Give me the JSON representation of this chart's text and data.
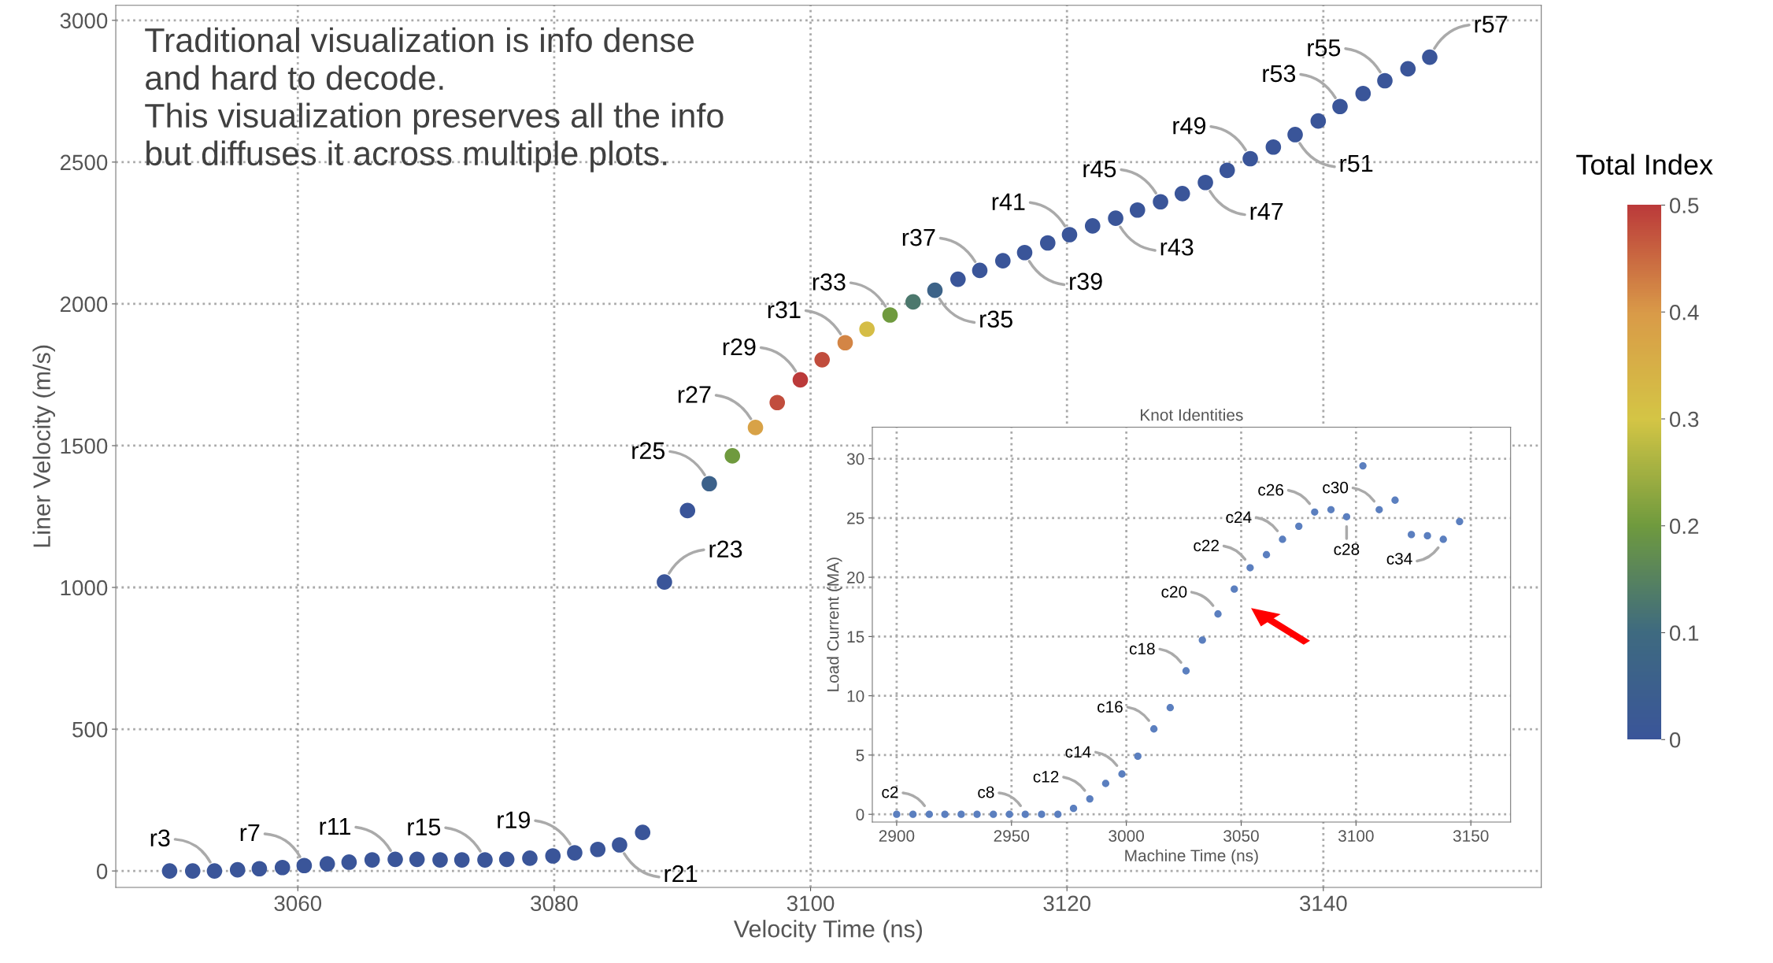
{
  "chart_data": [
    {
      "type": "scatter",
      "xlabel": "Velocity Time (ns)",
      "ylabel": "Liner Velocity (m/s)",
      "clabel": "Total Index",
      "marker": "circle",
      "grid": true,
      "x": [
        3050.0,
        3051.8,
        3053.5,
        3055.3,
        3057.0,
        3058.8,
        3060.5,
        3062.3,
        3064.0,
        3065.8,
        3067.6,
        3069.3,
        3071.1,
        3072.8,
        3074.6,
        3076.3,
        3078.1,
        3079.9,
        3081.6,
        3083.4,
        3085.1,
        3086.9,
        3088.6,
        3090.4,
        3092.1,
        3093.9,
        3095.7,
        3097.4,
        3099.2,
        3100.9,
        3102.7,
        3104.4,
        3106.2,
        3108.0,
        3109.7,
        3111.5,
        3113.2,
        3115.0,
        3116.7,
        3118.5,
        3120.2,
        3122.0,
        3123.8,
        3125.5,
        3127.3,
        3129.0,
        3130.8,
        3132.5,
        3134.3,
        3136.1,
        3137.8,
        3139.6,
        3141.3,
        3143.1,
        3144.8,
        3146.6,
        3148.3
      ],
      "values": [
        0,
        0,
        0,
        4,
        8,
        12,
        19,
        25,
        31,
        39,
        41,
        41,
        39,
        39,
        39,
        41,
        45,
        53,
        64,
        76,
        92,
        136,
        1019,
        1271,
        1366,
        1464,
        1564,
        1652,
        1732,
        1803,
        1863,
        1911,
        1961,
        2007,
        2048,
        2087,
        2118,
        2152,
        2181,
        2215,
        2244,
        2275,
        2302,
        2331,
        2360,
        2389,
        2428,
        2471,
        2512,
        2553,
        2597,
        2645,
        2696,
        2742,
        2787,
        2829,
        2870
      ],
      "cvalues": [
        0,
        0,
        0,
        0,
        0,
        0,
        0,
        0,
        0,
        0,
        0,
        0,
        0,
        0,
        0,
        0,
        0,
        0,
        0,
        0,
        0,
        0,
        0,
        0,
        0.06,
        0.2,
        0.38,
        0.48,
        0.5,
        0.48,
        0.42,
        0.32,
        0.2,
        0.13,
        0.07,
        0,
        0,
        0,
        0,
        0,
        0,
        0,
        0,
        0,
        0,
        0,
        0,
        0,
        0,
        0,
        0,
        0,
        0,
        0,
        0,
        0,
        0
      ],
      "clim": [
        0,
        0.5
      ],
      "cticks": [
        0,
        0.1,
        0.2,
        0.3,
        0.4,
        0.5
      ],
      "xlim": [
        3045.8,
        3157
      ],
      "ylim": [
        -58,
        3053
      ],
      "xticks": [
        3060,
        3080,
        3100,
        3120,
        3140
      ],
      "yticks": [
        0,
        500,
        1000,
        1500,
        2000,
        2500,
        3000
      ],
      "annotations": [
        "Traditional visualization is info dense\nand hard to decode.\nThis visualization preserves all the info\nbut diffuses it across multiple plots.",
        {
          "text": "r3",
          "x": 3053.5,
          "y": 0
        },
        {
          "text": "r7",
          "x": 3060.5,
          "y": 19
        },
        {
          "text": "r11",
          "x": 3067.6,
          "y": 41
        },
        {
          "text": "r15",
          "x": 3074.6,
          "y": 39
        },
        {
          "text": "r19",
          "x": 3081.6,
          "y": 64
        },
        {
          "text": "r21",
          "x": 3085.1,
          "y": 92
        },
        {
          "text": "r23",
          "x": 3088.6,
          "y": 1019
        },
        {
          "text": "r25",
          "x": 3092.1,
          "y": 1366
        },
        {
          "text": "r27",
          "x": 3095.7,
          "y": 1564
        },
        {
          "text": "r29",
          "x": 3099.2,
          "y": 1732
        },
        {
          "text": "r31",
          "x": 3102.7,
          "y": 1863
        },
        {
          "text": "r33",
          "x": 3106.2,
          "y": 1961
        },
        {
          "text": "r35",
          "x": 3109.7,
          "y": 2048
        },
        {
          "text": "r37",
          "x": 3113.2,
          "y": 2118
        },
        {
          "text": "r39",
          "x": 3116.7,
          "y": 2181
        },
        {
          "text": "r41",
          "x": 3120.2,
          "y": 2244
        },
        {
          "text": "r43",
          "x": 3123.8,
          "y": 2302
        },
        {
          "text": "r45",
          "x": 3127.3,
          "y": 2360
        },
        {
          "text": "r47",
          "x": 3130.8,
          "y": 2428
        },
        {
          "text": "r49",
          "x": 3134.3,
          "y": 2512
        },
        {
          "text": "r51",
          "x": 3137.8,
          "y": 2597
        },
        {
          "text": "r53",
          "x": 3141.3,
          "y": 2696
        },
        {
          "text": "r55",
          "x": 3144.8,
          "y": 2787
        },
        {
          "text": "r57",
          "x": 3148.3,
          "y": 2870
        }
      ]
    },
    {
      "type": "scatter",
      "title": "Knot Identities",
      "xlabel": "Machine Time (ns)",
      "ylabel": "Load Current (MA)",
      "marker": "circle",
      "grid": true,
      "color": "#5b7fbf",
      "x": [
        2900.0,
        2907.1,
        2914.2,
        2921.0,
        2928.1,
        2935.0,
        2942.1,
        2949.1,
        2956.0,
        2963.1,
        2970.2,
        2977.0,
        2984.1,
        2991.0,
        2998.1,
        3005.0,
        3012.0,
        3019.1,
        3026.0,
        3033.1,
        3039.9,
        3047.0,
        3053.9,
        3061.0,
        3068.0,
        3075.1,
        3082.0,
        3089.1,
        3095.9,
        3103.0,
        3110.1,
        3117.0,
        3124.1,
        3131.1,
        3138.0,
        3145.1
      ],
      "values": [
        0,
        0,
        0,
        0,
        0,
        0,
        0,
        0,
        0,
        0,
        0,
        0.5,
        1.3,
        2.6,
        3.4,
        4.9,
        7.2,
        9.0,
        12.1,
        14.7,
        16.9,
        19.0,
        20.8,
        21.9,
        23.2,
        24.3,
        25.5,
        25.7,
        25.1,
        29.4,
        25.7,
        26.5,
        23.6,
        23.5,
        23.2,
        24.7
      ],
      "xlim": [
        2889.4,
        3167.3
      ],
      "ylim": [
        -0.65,
        32.66
      ],
      "xticks": [
        2900,
        2950,
        3000,
        3050,
        3100,
        3150
      ],
      "yticks": [
        0,
        5,
        10,
        15,
        20,
        25,
        30
      ],
      "annotations": [
        {
          "text": "c2",
          "x": 2914.2,
          "y": 0
        },
        {
          "text": "c8",
          "x": 2956.0,
          "y": 0
        },
        {
          "text": "c12",
          "x": 2984.1,
          "y": 1.3
        },
        {
          "text": "c14",
          "x": 2998.1,
          "y": 3.4
        },
        {
          "text": "c16",
          "x": 3012.0,
          "y": 7.2
        },
        {
          "text": "c18",
          "x": 3026.0,
          "y": 12.1
        },
        {
          "text": "c20",
          "x": 3039.9,
          "y": 16.9
        },
        {
          "text": "c22",
          "x": 3053.9,
          "y": 20.8
        },
        {
          "text": "c24",
          "x": 3068.0,
          "y": 23.2
        },
        {
          "text": "c26",
          "x": 3082.0,
          "y": 25.5
        },
        {
          "text": "c28",
          "x": 3095.9,
          "y": 25.1
        },
        {
          "text": "c30",
          "x": 3110.1,
          "y": 25.7
        },
        {
          "text": "c34",
          "x": 3138.0,
          "y": 23.2
        }
      ]
    }
  ]
}
